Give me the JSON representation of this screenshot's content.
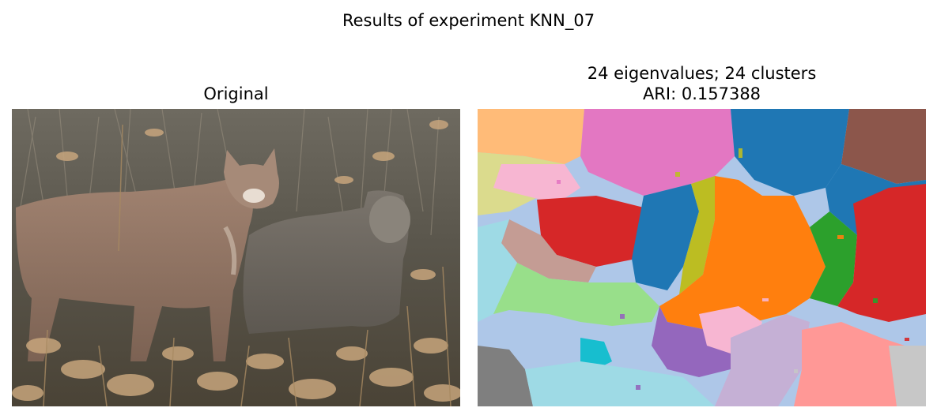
{
  "figure": {
    "suptitle": "Results of experiment KNN_07"
  },
  "panels": {
    "left": {
      "title": "Original",
      "content": "photograph of a cougar and cub in dry grass"
    },
    "right": {
      "title_line1": "24 eigenvalues; 24 clusters",
      "title_line2": "ARI: 0.157388",
      "content": "segmentation map with 24 colored clusters"
    }
  },
  "colors": {
    "blue": "#1f77b4",
    "orange": "#ff7f0e",
    "green": "#2ca02c",
    "red": "#d62728",
    "purple": "#9467bd",
    "brown": "#8c564b",
    "pink": "#e377c2",
    "gray": "#7f7f7f",
    "olive": "#bcbd22",
    "cyan": "#17becf",
    "light_orange": "#ffbb78",
    "light_green": "#98df8a",
    "light_red": "#ff9896",
    "light_purple": "#c5b0d5",
    "light_brown": "#c49c94",
    "light_pink": "#f7b6d2",
    "light_gray": "#c7c7c7",
    "light_olive": "#dbdb8d",
    "light_cyan": "#9edae5",
    "light_blue": "#aec7e8"
  }
}
